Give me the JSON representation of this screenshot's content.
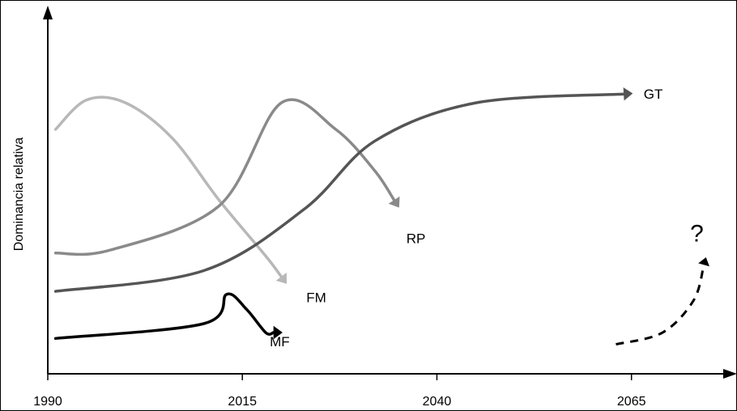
{
  "chart_data": {
    "type": "line",
    "title": "",
    "xlabel": "",
    "ylabel": "Dominancia relativa",
    "xlim": [
      1990,
      2077
    ],
    "x_ticks": [
      1990,
      2015,
      2040,
      2065
    ],
    "x_tick_labels": [
      "1990",
      "2015",
      "2040",
      "2065"
    ],
    "y_ticks": [],
    "ylim": [
      0,
      100
    ],
    "grid": false,
    "legend": "none",
    "series": [
      {
        "name": "FM",
        "color": "#b8b8b8",
        "label_x": 2024.5,
        "label_y": 26,
        "x": [
          1991,
          1995,
          2000,
          2006,
          2012,
          2018,
          2020
        ],
        "y": [
          83,
          93,
          92,
          80,
          59,
          40,
          33
        ]
      },
      {
        "name": "RP",
        "color": "#8a8a8a",
        "label_x": 2037.3,
        "label_y": 46,
        "x": [
          1991,
          1998,
          2012,
          2020,
          2027,
          2032,
          2034.5
        ],
        "y": [
          41,
          42,
          57,
          92,
          83,
          69,
          59
        ]
      },
      {
        "name": "GT",
        "color": "#555555",
        "label_x": 2067.8,
        "label_y": 95,
        "x": [
          1991,
          2010,
          2023,
          2032,
          2045,
          2064
        ],
        "y": [
          28,
          35,
          56,
          79,
          92,
          95
        ]
      },
      {
        "name": "MF",
        "color": "#000000",
        "label_x": 2019.8,
        "label_y": 11,
        "x": [
          1991,
          2010,
          2013,
          2015.5,
          2018,
          2019
        ],
        "y": [
          12,
          17,
          27,
          22,
          14,
          14
        ]
      }
    ],
    "annotations": [
      {
        "text": "?",
        "x": 2073.4,
        "y": 48,
        "style": "dashed-arrow",
        "color": "#000000",
        "x_path": [
          2063,
          2069,
          2073,
          2074.3
        ],
        "y_path": [
          10,
          14,
          25,
          37
        ]
      }
    ]
  }
}
